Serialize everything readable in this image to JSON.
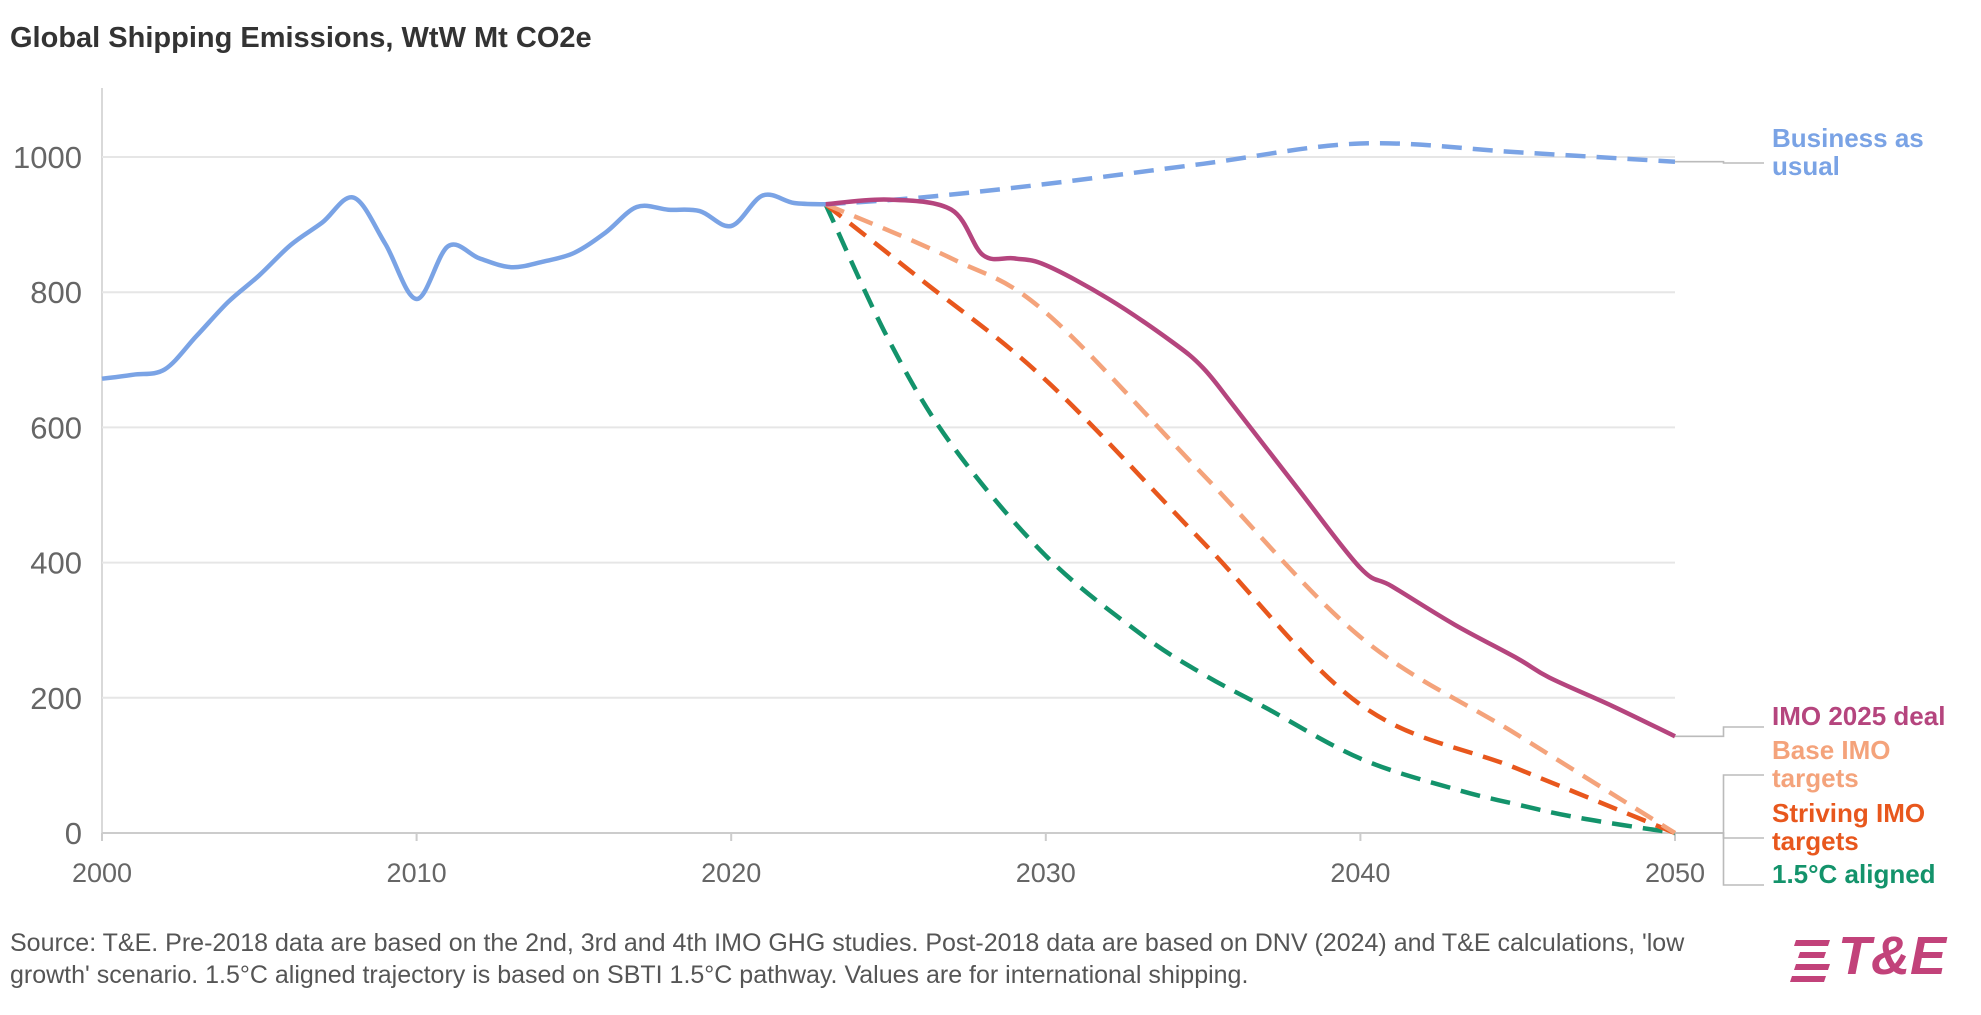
{
  "chart_data": {
    "type": "line",
    "title": "Global Shipping Emissions, WtW Mt CO2e",
    "xlim": [
      2000,
      2050
    ],
    "ylim": [
      0,
      1100
    ],
    "x_ticks": [
      2000,
      2010,
      2020,
      2030,
      2040,
      2050
    ],
    "y_ticks": [
      0,
      200,
      400,
      600,
      800,
      1000
    ],
    "grid": "horizontal",
    "series": [
      {
        "name": "Historical",
        "color": "#7aa3e5",
        "style": "solid",
        "points": [
          [
            2000,
            672
          ],
          [
            2001,
            678
          ],
          [
            2002,
            686
          ],
          [
            2003,
            735
          ],
          [
            2004,
            785
          ],
          [
            2005,
            825
          ],
          [
            2006,
            870
          ],
          [
            2007,
            903
          ],
          [
            2008,
            940
          ],
          [
            2009,
            872
          ],
          [
            2010,
            790
          ],
          [
            2011,
            868
          ],
          [
            2012,
            850
          ],
          [
            2013,
            837
          ],
          [
            2014,
            845
          ],
          [
            2015,
            858
          ],
          [
            2016,
            888
          ],
          [
            2017,
            926
          ],
          [
            2018,
            922
          ],
          [
            2019,
            920
          ],
          [
            2020,
            898
          ],
          [
            2021,
            943
          ],
          [
            2022,
            932
          ],
          [
            2023,
            930
          ]
        ]
      },
      {
        "name": "Business as usual",
        "color": "#7aa3e5",
        "style": "dashed",
        "points": [
          [
            2023,
            930
          ],
          [
            2026,
            940
          ],
          [
            2030,
            960
          ],
          [
            2035,
            990
          ],
          [
            2040,
            1020
          ],
          [
            2045,
            1007
          ],
          [
            2050,
            993
          ]
        ]
      },
      {
        "name": "IMO 2025 deal",
        "color": "#b5457e",
        "style": "solid",
        "points": [
          [
            2023,
            930
          ],
          [
            2025,
            937
          ],
          [
            2027,
            922
          ],
          [
            2028,
            855
          ],
          [
            2029,
            850
          ],
          [
            2030,
            840
          ],
          [
            2032,
            790
          ],
          [
            2034,
            727
          ],
          [
            2035,
            688
          ],
          [
            2036,
            630
          ],
          [
            2038,
            510
          ],
          [
            2040,
            392
          ],
          [
            2041,
            365
          ],
          [
            2043,
            308
          ],
          [
            2045,
            258
          ],
          [
            2046,
            230
          ],
          [
            2048,
            188
          ],
          [
            2050,
            143
          ]
        ]
      },
      {
        "name": "Base IMO targets",
        "color": "#f4a37b",
        "style": "dashed",
        "points": [
          [
            2023,
            930
          ],
          [
            2027,
            850
          ],
          [
            2030,
            770
          ],
          [
            2035,
            530
          ],
          [
            2040,
            290
          ],
          [
            2045,
            145
          ],
          [
            2050,
            0
          ]
        ]
      },
      {
        "name": "Striving IMO targets",
        "color": "#e8571d",
        "style": "dashed",
        "points": [
          [
            2023,
            930
          ],
          [
            2026,
            820
          ],
          [
            2030,
            670
          ],
          [
            2035,
            430
          ],
          [
            2040,
            190
          ],
          [
            2045,
            95
          ],
          [
            2050,
            0
          ]
        ]
      },
      {
        "name": "1.5°C aligned",
        "color": "#13936b",
        "style": "dashed",
        "points": [
          [
            2023,
            930
          ],
          [
            2025,
            730
          ],
          [
            2027,
            575
          ],
          [
            2030,
            410
          ],
          [
            2033,
            295
          ],
          [
            2035,
            235
          ],
          [
            2037,
            185
          ],
          [
            2040,
            110
          ],
          [
            2043,
            65
          ],
          [
            2045,
            42
          ],
          [
            2047,
            22
          ],
          [
            2050,
            0
          ]
        ]
      }
    ],
    "labels": [
      {
        "series": "Business as usual",
        "lines": [
          "Business as",
          "usual"
        ],
        "color": "#7aa3e5",
        "anchor_x": 2050,
        "anchor_y": 993
      },
      {
        "series": "IMO 2025 deal",
        "lines": [
          "IMO 2025 deal"
        ],
        "color": "#b5457e",
        "anchor_x": 2050,
        "anchor_y": 143
      },
      {
        "series": "Base IMO targets",
        "lines": [
          "Base IMO",
          "targets"
        ],
        "color": "#f4a37b",
        "anchor_x": 2050,
        "anchor_y": 0
      },
      {
        "series": "Striving IMO targets",
        "lines": [
          "Striving IMO",
          "targets"
        ],
        "color": "#e8571d",
        "anchor_x": 2050,
        "anchor_y": 0
      },
      {
        "series": "1.5°C aligned",
        "lines": [
          "1.5°C aligned"
        ],
        "color": "#13936b",
        "anchor_x": 2050,
        "anchor_y": 0
      }
    ]
  },
  "source_note": "Source: T&E. Pre-2018 data are based on the 2nd, 3rd and 4th IMO GHG studies. Post-2018 data are based on DNV (2024) and T&E calculations, 'low growth' scenario. 1.5°C aligned trajectory is based on SBTI 1.5°C pathway. Values are for international shipping.",
  "logo": {
    "text": "T&E",
    "color": "#c2427a"
  }
}
